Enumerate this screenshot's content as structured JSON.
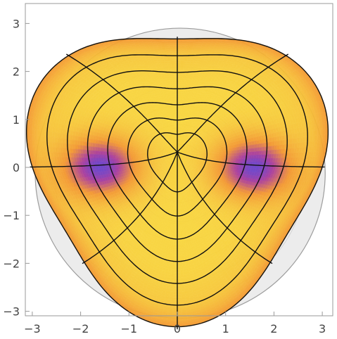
{
  "chart_data": {
    "type": "heatmap",
    "subtype": "transformed-polar-mesh-density",
    "title": "",
    "xlabel": "",
    "ylabel": "",
    "xlim": [
      -3.15,
      3.15
    ],
    "ylim": [
      -3.15,
      3.4
    ],
    "x_ticks": [
      -3,
      -2,
      -1,
      0,
      1,
      2,
      3
    ],
    "y_ticks": [
      -3,
      -2,
      -1,
      0,
      1,
      2,
      3
    ],
    "x_tick_labels": [
      "−3",
      "−2",
      "−1",
      "0",
      "1",
      "2",
      "3"
    ],
    "y_tick_labels": [
      "−3",
      "−2",
      "−1",
      "0",
      "1",
      "2",
      "3"
    ],
    "grid": false,
    "frame": true,
    "colormap": "sunset (purple → orange → yellow)",
    "color_minima": [
      {
        "x": -1.6,
        "y": 0.0
      },
      {
        "x": 1.6,
        "y": 0.0
      }
    ],
    "background_disk_radius": 3.0,
    "mesh": {
      "radial_levels": [
        0.6,
        1.0,
        1.4,
        1.8,
        2.2,
        2.6,
        3.0
      ],
      "angular_lines_deg": [
        0,
        45,
        90,
        135,
        180,
        225,
        270,
        315
      ]
    },
    "colors": {
      "purple": "#6a3fc8",
      "magenta": "#a8389c",
      "orange": "#f4962e",
      "yellow": "#f9d53a",
      "mesh": "#111111",
      "disk_fill": "#ececec",
      "disk_lines": "#9c9c9c",
      "frame": "#9a9a9a"
    }
  }
}
